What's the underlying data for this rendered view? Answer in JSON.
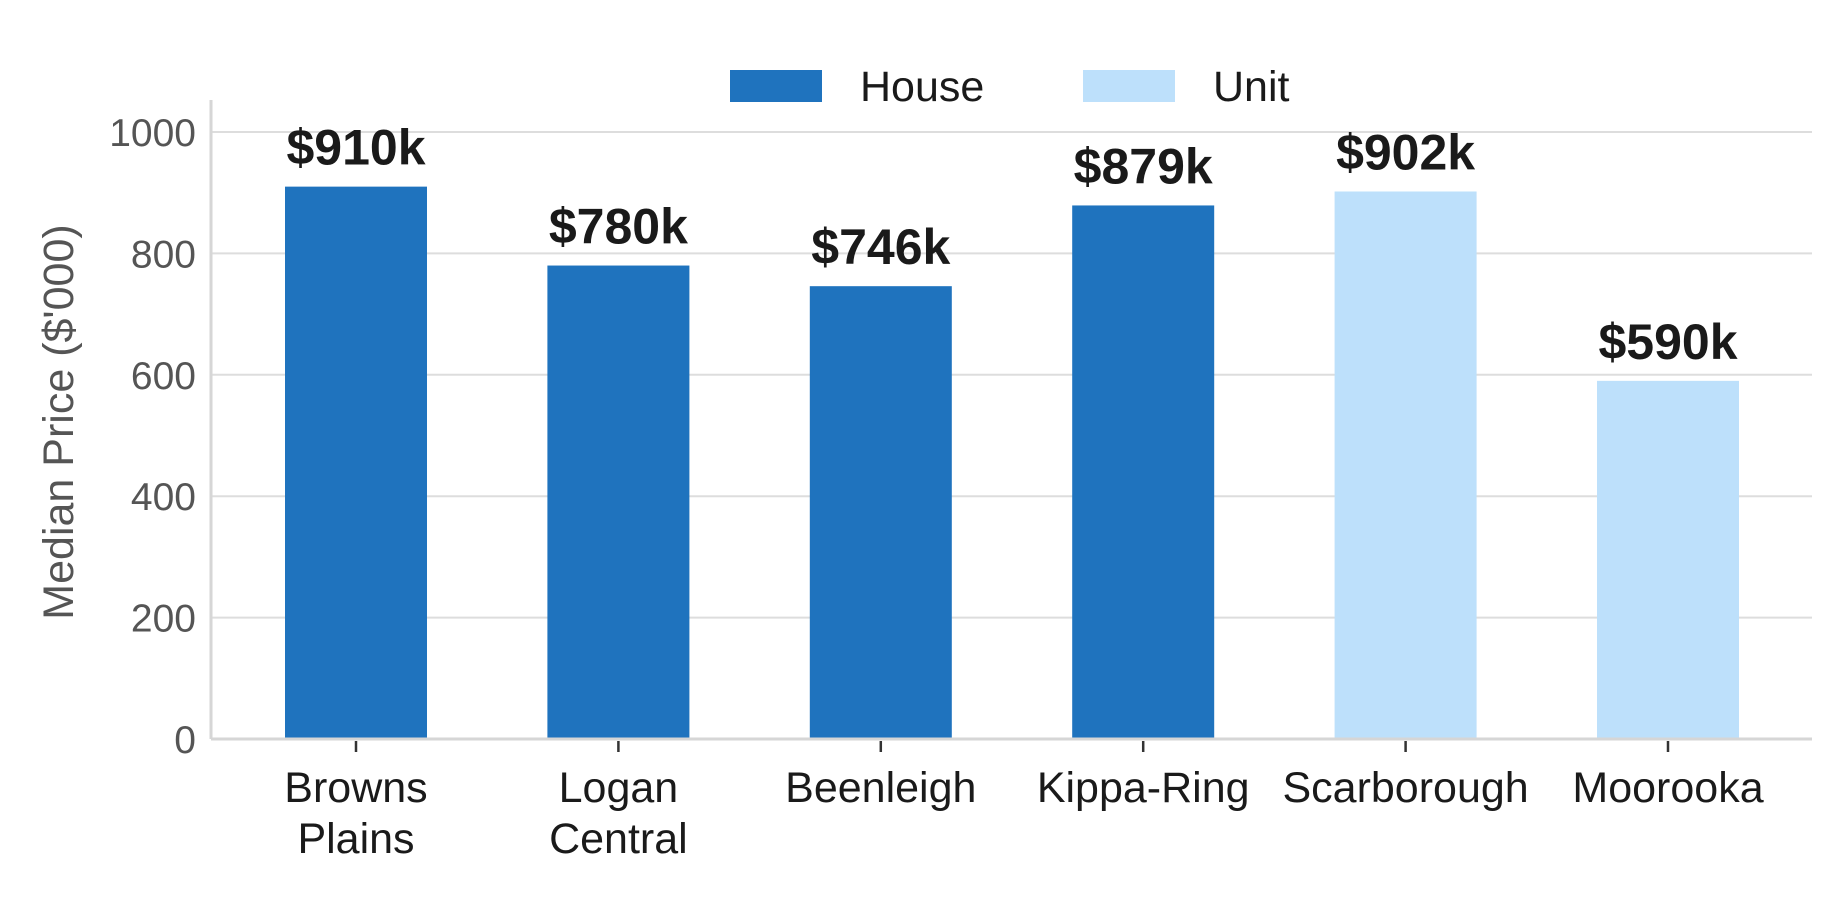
{
  "chart_data": {
    "type": "bar",
    "ylabel": "Median Price ($'000)",
    "ylim": [
      0,
      1050
    ],
    "yticks": [
      0,
      200,
      400,
      600,
      800,
      1000
    ],
    "grid": "horizontal",
    "legend_position": "top-center",
    "legend": [
      {
        "name": "House",
        "color": "#1f73be"
      },
      {
        "name": "Unit",
        "color": "#bde0fb"
      }
    ],
    "categories": [
      [
        "Browns",
        "Plains"
      ],
      [
        "Logan",
        "Central"
      ],
      [
        "Beenleigh"
      ],
      [
        "Kippa-Ring"
      ],
      [
        "Scarborough"
      ],
      [
        "Moorooka"
      ]
    ],
    "values": [
      910,
      780,
      746,
      879,
      902,
      590
    ],
    "series_of_bar": [
      "House",
      "House",
      "House",
      "House",
      "Unit",
      "Unit"
    ],
    "data_labels": [
      "$910k",
      "$780k",
      "$746k",
      "$879k",
      "$902k",
      "$590k"
    ]
  }
}
